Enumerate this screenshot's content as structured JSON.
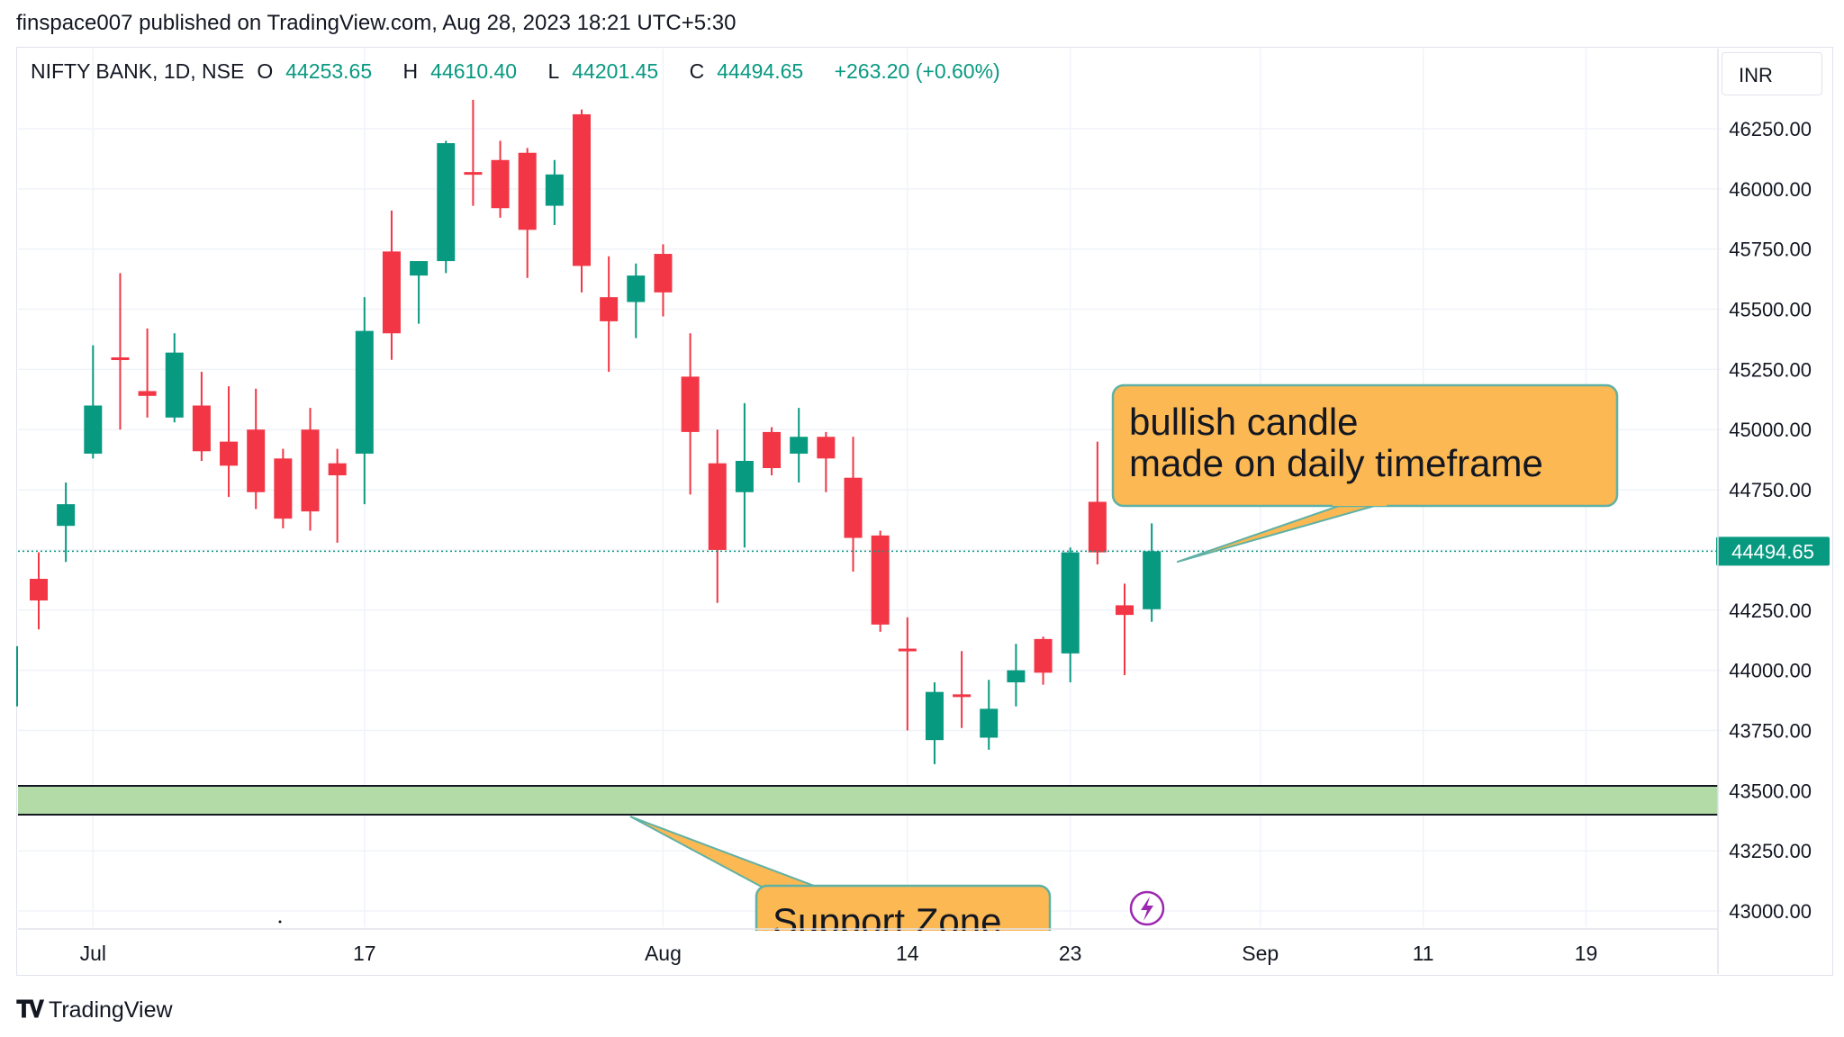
{
  "header": {
    "publisher": "finspace007 published on TradingView.com, Aug 28, 2023 18:21 UTC+5:30"
  },
  "legend": {
    "symbol": "NIFTY BANK, 1D, NSE",
    "open_label": "O",
    "open": "44253.65",
    "high_label": "H",
    "high": "44610.40",
    "low_label": "L",
    "low": "44201.45",
    "close_label": "C",
    "close": "44494.65",
    "change": "+263.20 (+0.60%)"
  },
  "currency": "INR",
  "footer": {
    "brand": "TradingView"
  },
  "colors": {
    "up": "#089981",
    "down": "#f23645",
    "support_fill": "#b2dba8",
    "callout_fill": "#fcb852",
    "callout_border": "#5fb1a5",
    "grid": "#f0f3fa",
    "price_line": "#089981"
  },
  "chart_data": {
    "type": "candlestick",
    "timeframe": "1D",
    "ylim": [
      42950,
      46550
    ],
    "y_ticks": [
      "46250.00",
      "46000.00",
      "45750.00",
      "45500.00",
      "45250.00",
      "45000.00",
      "44750.00",
      "44500.00",
      "44250.00",
      "44000.00",
      "43750.00",
      "43500.00",
      "43250.00",
      "43000.00"
    ],
    "x_ticks": [
      {
        "label": "Jul",
        "index": 2
      },
      {
        "label": "17",
        "index": 12
      },
      {
        "label": "Aug",
        "index": 23
      },
      {
        "label": "14",
        "index": 32
      },
      {
        "label": "23",
        "index": 38
      },
      {
        "label": "Sep",
        "index": 45
      },
      {
        "label": "11",
        "index": 51
      },
      {
        "label": "19",
        "index": 57
      }
    ],
    "last_price": "44494.65",
    "candles": [
      {
        "o": 44380,
        "h": 44490,
        "l": 44170,
        "c": 44290
      },
      {
        "o": 44600,
        "h": 44780,
        "l": 44450,
        "c": 44690
      },
      {
        "o": 44900,
        "h": 45350,
        "l": 44880,
        "c": 45100
      },
      {
        "o": 45300,
        "h": 45650,
        "l": 45000,
        "c": 45290
      },
      {
        "o": 45160,
        "h": 45420,
        "l": 45050,
        "c": 45140
      },
      {
        "o": 45050,
        "h": 45400,
        "l": 45030,
        "c": 45320
      },
      {
        "o": 45100,
        "h": 45240,
        "l": 44870,
        "c": 44910
      },
      {
        "o": 44950,
        "h": 45180,
        "l": 44720,
        "c": 44850
      },
      {
        "o": 45000,
        "h": 45170,
        "l": 44670,
        "c": 44740
      },
      {
        "o": 44880,
        "h": 44920,
        "l": 44590,
        "c": 44630
      },
      {
        "o": 45000,
        "h": 45090,
        "l": 44580,
        "c": 44660
      },
      {
        "o": 44860,
        "h": 44920,
        "l": 44530,
        "c": 44810
      },
      {
        "o": 44900,
        "h": 45550,
        "l": 44690,
        "c": 45410
      },
      {
        "o": 45740,
        "h": 45910,
        "l": 45290,
        "c": 45400
      },
      {
        "o": 45640,
        "h": 45700,
        "l": 45440,
        "c": 45700
      },
      {
        "o": 45700,
        "h": 46200,
        "l": 45650,
        "c": 46190
      },
      {
        "o": 46070,
        "h": 46370,
        "l": 45930,
        "c": 46060
      },
      {
        "o": 46120,
        "h": 46200,
        "l": 45880,
        "c": 45920
      },
      {
        "o": 46150,
        "h": 46170,
        "l": 45630,
        "c": 45830
      },
      {
        "o": 45930,
        "h": 46120,
        "l": 45850,
        "c": 46060
      },
      {
        "o": 46310,
        "h": 46330,
        "l": 45570,
        "c": 45680
      },
      {
        "o": 45550,
        "h": 45720,
        "l": 45240,
        "c": 45450
      },
      {
        "o": 45530,
        "h": 45690,
        "l": 45380,
        "c": 45640
      },
      {
        "o": 45730,
        "h": 45770,
        "l": 45470,
        "c": 45570
      },
      {
        "o": 45220,
        "h": 45400,
        "l": 44730,
        "c": 44990
      },
      {
        "o": 44860,
        "h": 45000,
        "l": 44280,
        "c": 44500
      },
      {
        "o": 44740,
        "h": 45110,
        "l": 44510,
        "c": 44870
      },
      {
        "o": 44990,
        "h": 45010,
        "l": 44810,
        "c": 44840
      },
      {
        "o": 44900,
        "h": 45090,
        "l": 44780,
        "c": 44970
      },
      {
        "o": 44970,
        "h": 44990,
        "l": 44740,
        "c": 44880
      },
      {
        "o": 44800,
        "h": 44970,
        "l": 44410,
        "c": 44550
      },
      {
        "o": 44560,
        "h": 44580,
        "l": 44160,
        "c": 44190
      },
      {
        "o": 44090,
        "h": 44220,
        "l": 43750,
        "c": 44080
      },
      {
        "o": 43710,
        "h": 43950,
        "l": 43610,
        "c": 43910
      },
      {
        "o": 43900,
        "h": 44080,
        "l": 43760,
        "c": 43890
      },
      {
        "o": 43720,
        "h": 43960,
        "l": 43670,
        "c": 43840
      },
      {
        "o": 43950,
        "h": 44110,
        "l": 43850,
        "c": 44000
      },
      {
        "o": 44130,
        "h": 44140,
        "l": 43940,
        "c": 43990
      },
      {
        "o": 44070,
        "h": 44510,
        "l": 43950,
        "c": 44490
      },
      {
        "o": 44700,
        "h": 44950,
        "l": 44440,
        "c": 44490
      },
      {
        "o": 44270,
        "h": 44360,
        "l": 43980,
        "c": 44230
      },
      {
        "o": 44253.65,
        "h": 44610.4,
        "l": 44201.45,
        "c": 44494.65
      }
    ],
    "annotations": [
      {
        "text_lines": [
          "bullish candle",
          "made on daily timeframe"
        ],
        "points_to_index": 41
      },
      {
        "text": "Support Zone",
        "range": [
          43400,
          43520
        ]
      }
    ]
  }
}
